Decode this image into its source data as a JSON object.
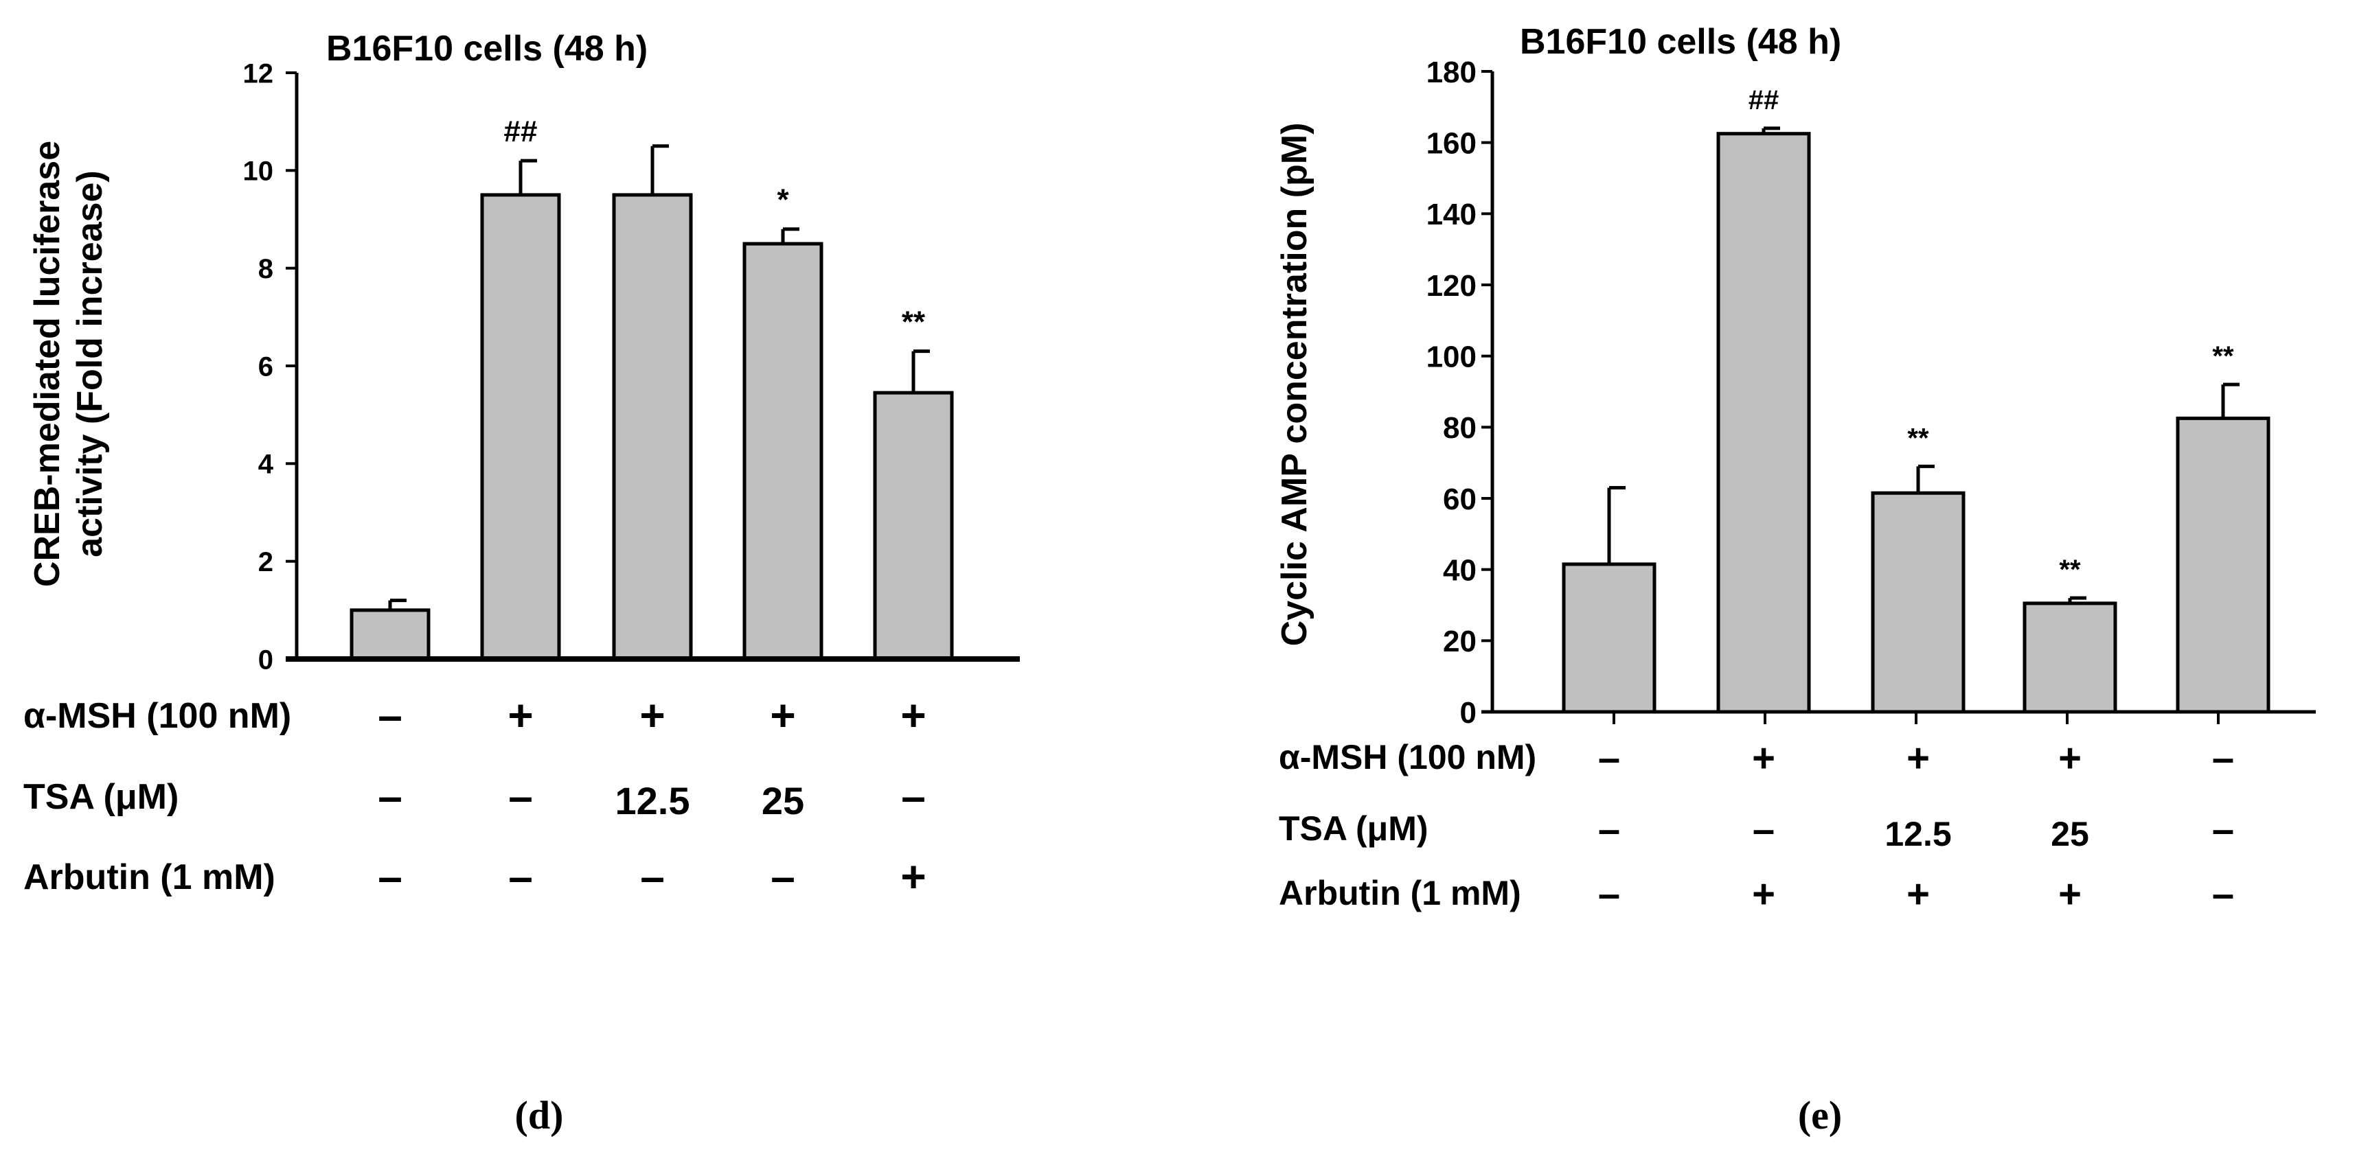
{
  "colors": {
    "bar_fill": "#c0c0c0",
    "bar_stroke": "#000000",
    "axis": "#000000",
    "text": "#000000"
  },
  "chart_data": [
    {
      "type": "bar",
      "panel_label": "(d)",
      "title": "B16F10 cells (48 h)",
      "ylabel_lines": [
        "CREB-mediated luciferase",
        "activity (Fold increase)"
      ],
      "xlabel": "",
      "ylim": [
        0,
        12
      ],
      "yticks": [
        0,
        2,
        4,
        6,
        8,
        10,
        12
      ],
      "ytick_labels": [
        "0",
        "2",
        "4",
        "6",
        "8",
        "10",
        "12"
      ],
      "values": [
        1.0,
        9.5,
        9.5,
        8.5,
        5.45
      ],
      "errors": [
        0.2,
        0.7,
        1.0,
        0.3,
        0.85
      ],
      "annotations": [
        "",
        "##",
        "",
        "*",
        "**"
      ],
      "grid": false,
      "treatments": [
        {
          "label": "α-MSH (100 nM)",
          "values": [
            "–",
            "+",
            "+",
            "+",
            "+"
          ]
        },
        {
          "label": "TSA (μM)",
          "values": [
            "–",
            "–",
            "12.5",
            "25",
            "–"
          ]
        },
        {
          "label": "Arbutin (1 mM)",
          "values": [
            "–",
            "–",
            "–",
            "–",
            "+"
          ]
        }
      ]
    },
    {
      "type": "bar",
      "panel_label": "(e)",
      "title": "B16F10 cells (48 h)",
      "ylabel_lines": [
        "Cyclic AMP concentration (pM)"
      ],
      "xlabel": "",
      "ylim": [
        0,
        180
      ],
      "yticks": [
        0,
        20,
        40,
        60,
        80,
        100,
        120,
        140,
        160,
        180
      ],
      "ytick_labels": [
        "0",
        "20",
        "40",
        "60",
        "80",
        "100",
        "120",
        "140",
        "160",
        "180"
      ],
      "values": [
        41.5,
        162.5,
        61.5,
        30.5,
        82.5
      ],
      "errors": [
        21.5,
        1.5,
        7.5,
        1.5,
        9.5
      ],
      "annotations": [
        "",
        "##",
        "**",
        "**",
        "**"
      ],
      "grid": false,
      "treatments": [
        {
          "label": "α-MSH (100 nM)",
          "values": [
            "–",
            "+",
            "+",
            "+",
            "–"
          ]
        },
        {
          "label": "TSA (μM)",
          "values": [
            "–",
            "–",
            "12.5",
            "25",
            "–"
          ]
        },
        {
          "label": "Arbutin (1 mM)",
          "values": [
            "–",
            "+",
            "+",
            "+",
            "–"
          ]
        }
      ]
    }
  ]
}
